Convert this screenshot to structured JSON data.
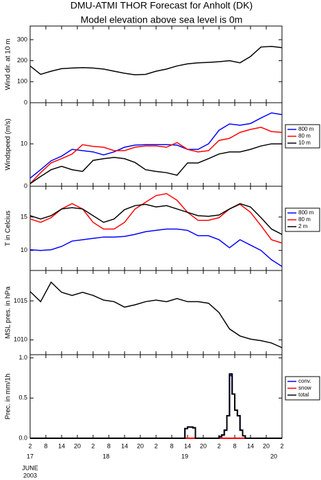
{
  "title": "DMU-ATMI THOR Forecast for Anholt (DK)",
  "subtitle": "Model elevation above sea level is    0m",
  "time": {
    "xlim": [
      2,
      98
    ],
    "xticks": [
      2,
      8,
      14,
      20,
      {
        "value": 26,
        "label": "2"
      },
      {
        "value": 32,
        "label": "8"
      },
      {
        "value": 38,
        "label": "14"
      },
      {
        "value": 44,
        "label": "20"
      },
      {
        "value": 50,
        "label": "2"
      },
      {
        "value": 56,
        "label": "8"
      },
      {
        "value": 62,
        "label": "14"
      },
      {
        "value": 68,
        "label": "20"
      },
      {
        "value": 74,
        "label": "2"
      },
      {
        "value": 80,
        "label": "8"
      },
      {
        "value": 86,
        "label": "14"
      },
      {
        "value": 92,
        "label": "20"
      },
      {
        "value": 98,
        "label": "2"
      }
    ],
    "day_labels": [
      "17",
      "18",
      "19",
      "20"
    ],
    "month": "JUNE",
    "year": "2003",
    "x": [
      2,
      6,
      10,
      14,
      18,
      22,
      26,
      30,
      34,
      38,
      42,
      46,
      50,
      54,
      58,
      62,
      66,
      70,
      74,
      78,
      82,
      86,
      90,
      94,
      98
    ]
  },
  "chart_data": [
    {
      "type": "line",
      "ylabel": "Wind dir. at 10 m",
      "ylim": [
        0,
        365
      ],
      "yticks": [
        0,
        100,
        200,
        300
      ],
      "series": [
        {
          "name": "Wind dir. at 10 m",
          "color": "#000000",
          "values": [
            175,
            135,
            150,
            162,
            165,
            167,
            165,
            160,
            150,
            140,
            133,
            135,
            150,
            160,
            175,
            185,
            190,
            192,
            195,
            200,
            190,
            220,
            265,
            268,
            262
          ]
        }
      ]
    },
    {
      "type": "line",
      "ylabel": "Windspeed (m/s)",
      "ylim": [
        0,
        19.7
      ],
      "yticks": [
        0,
        10
      ],
      "legend": true,
      "series": [
        {
          "name": "800 m",
          "color": "#0000ff",
          "values": [
            1.9,
            3.9,
            6.0,
            7.1,
            8.7,
            8.4,
            8.1,
            7.4,
            8.1,
            9.2,
            9.7,
            9.8,
            9.8,
            9.8,
            9.7,
            8.7,
            8.7,
            10,
            13.2,
            14.7,
            14.4,
            14.8,
            16.1,
            17.3,
            16.9
          ]
        },
        {
          "name": "80 m",
          "color": "#ff0000",
          "values": [
            0.6,
            3.2,
            5.5,
            6.5,
            7.6,
            9.8,
            9.4,
            9.2,
            8.4,
            8.4,
            9.2,
            9.5,
            9.5,
            9.2,
            10.3,
            8.7,
            8.1,
            8.4,
            10.8,
            11.3,
            12.7,
            13.4,
            13.9,
            12.9,
            12.7
          ]
        },
        {
          "name": "10 m",
          "color": "#000000",
          "values": [
            0.6,
            2.3,
            3.9,
            4.7,
            3.9,
            3.5,
            6.1,
            6.5,
            6.8,
            6.5,
            5.6,
            3.9,
            3.5,
            3.2,
            2.6,
            5.5,
            5.5,
            6.5,
            7.6,
            8.1,
            8.1,
            8.7,
            9.5,
            10,
            10
          ]
        }
      ]
    },
    {
      "type": "line",
      "ylabel": "T in Celcius",
      "ylim": [
        7.0,
        19.6
      ],
      "yticks": [
        10,
        15
      ],
      "legend": true,
      "series": [
        {
          "name": "800 m",
          "color": "#0000ff",
          "values": [
            10.1,
            10.0,
            10.1,
            10.6,
            11.4,
            11.6,
            11.8,
            12.0,
            12.0,
            12.1,
            12.4,
            12.8,
            13.0,
            13.2,
            13.2,
            13.0,
            12.2,
            12.2,
            11.6,
            10.4,
            11.6,
            10.8,
            10.0,
            8.6,
            7.6
          ]
        },
        {
          "name": "80 m",
          "color": "#ff0000",
          "values": [
            14.7,
            14.2,
            14.9,
            16.2,
            17.0,
            16.2,
            14.2,
            13.2,
            13.2,
            14.2,
            16.2,
            17.2,
            18.2,
            18.5,
            17.5,
            15.7,
            14.5,
            14.5,
            14.9,
            16.2,
            16.9,
            15.7,
            13.7,
            11.6,
            11.1
          ]
        },
        {
          "name": "2 m",
          "color": "#000000",
          "values": [
            15.2,
            14.7,
            15.2,
            16.2,
            16.4,
            16.2,
            15.2,
            14.2,
            14.7,
            16.1,
            16.7,
            16.9,
            16.5,
            16.7,
            16.2,
            15.7,
            15.2,
            15.1,
            15.3,
            16.2,
            17.0,
            16.5,
            14.9,
            13.2,
            12.4
          ]
        }
      ]
    },
    {
      "type": "line",
      "ylabel": "MSL pres. in hPa",
      "ylim": [
        1008.1,
        1018.9
      ],
      "yticks": [
        1010,
        1015
      ],
      "series": [
        {
          "name": "MSL pres. in hPa",
          "color": "#000000",
          "values": [
            1016.2,
            1014.9,
            1017.4,
            1016.1,
            1015.7,
            1016.1,
            1015.7,
            1015.1,
            1014.9,
            1014.2,
            1014.5,
            1014.9,
            1015.1,
            1014.9,
            1015.3,
            1014.9,
            1014.9,
            1014.7,
            1013.5,
            1011.4,
            1010.5,
            1010.1,
            1009.9,
            1009.6,
            1009.0
          ]
        }
      ]
    },
    {
      "type": "step",
      "ylabel": "Prec. in mm/1h",
      "ylim": [
        0,
        1.04
      ],
      "yticks": [
        {
          "value": 0,
          "label": "0.0"
        },
        {
          "value": 0.5,
          "label": "0.5"
        },
        {
          "value": 1,
          "label": "1.0"
        }
      ],
      "legend": true,
      "x": [
        2,
        61,
        62,
        63,
        64,
        65,
        74,
        75,
        76,
        77,
        78,
        79,
        80,
        81,
        82,
        83,
        84,
        98
      ],
      "series": [
        {
          "name": "conv.",
          "color": "#0000ff",
          "values": [
            0,
            0.12,
            0.14,
            0.14,
            0.13,
            0,
            0.02,
            0.04,
            0.1,
            0.28,
            0.78,
            0.55,
            0.35,
            0.28,
            0.1,
            0.03,
            0,
            0
          ]
        },
        {
          "name": "snow",
          "color": "#ff0000",
          "values": [
            0,
            0,
            0,
            0,
            0,
            0,
            0,
            0,
            0,
            0,
            0,
            0,
            0,
            0,
            0,
            0,
            0,
            0
          ]
        },
        {
          "name": "total",
          "color": "#000000",
          "values": [
            0,
            0.12,
            0.14,
            0.14,
            0.13,
            0,
            0.02,
            0.04,
            0.1,
            0.28,
            0.8,
            0.55,
            0.35,
            0.28,
            0.1,
            0.03,
            0,
            0
          ]
        }
      ]
    }
  ]
}
